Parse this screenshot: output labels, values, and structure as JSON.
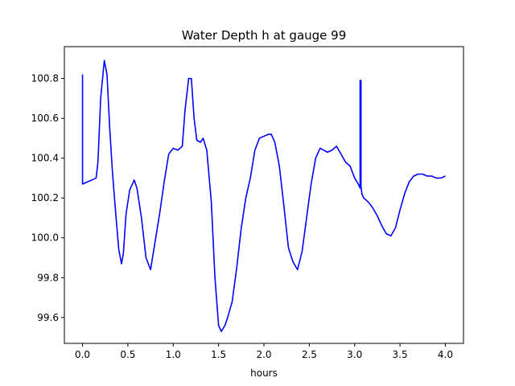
{
  "chart_data": {
    "type": "line",
    "title": "Water Depth h at gauge 99",
    "xlabel": "hours",
    "ylabel": "",
    "xlim": [
      -0.2,
      4.2
    ],
    "ylim": [
      99.47,
      100.96
    ],
    "xticks": [
      0.0,
      0.5,
      1.0,
      1.5,
      2.0,
      2.5,
      3.0,
      3.5,
      4.0
    ],
    "xtick_labels": [
      "0.0",
      "0.5",
      "1.0",
      "1.5",
      "2.0",
      "2.5",
      "3.0",
      "3.5",
      "4.0"
    ],
    "yticks": [
      99.6,
      99.8,
      100.0,
      100.2,
      100.4,
      100.6,
      100.8
    ],
    "ytick_labels": [
      "99.6",
      "99.8",
      "100.0",
      "100.2",
      "100.4",
      "100.6",
      "100.8"
    ],
    "grid": false,
    "legend": "none",
    "series": [
      {
        "color": "#0000ff",
        "x": [
          0.0,
          0.0,
          0.0,
          0.05,
          0.1,
          0.15,
          0.17,
          0.2,
          0.24,
          0.27,
          0.3,
          0.33,
          0.37,
          0.4,
          0.43,
          0.45,
          0.48,
          0.52,
          0.57,
          0.6,
          0.65,
          0.7,
          0.75,
          0.8,
          0.85,
          0.9,
          0.95,
          1.0,
          1.05,
          1.1,
          1.13,
          1.17,
          1.2,
          1.23,
          1.26,
          1.3,
          1.33,
          1.37,
          1.42,
          1.46,
          1.5,
          1.53,
          1.57,
          1.6,
          1.65,
          1.7,
          1.75,
          1.8,
          1.85,
          1.9,
          1.95,
          2.0,
          2.05,
          2.08,
          2.12,
          2.17,
          2.22,
          2.27,
          2.32,
          2.37,
          2.42,
          2.47,
          2.52,
          2.57,
          2.62,
          2.66,
          2.7,
          2.75,
          2.8,
          2.85,
          2.9,
          2.95,
          3.0,
          3.04,
          3.06,
          3.06,
          3.07,
          3.07,
          3.08,
          3.1,
          3.15,
          3.2,
          3.25,
          3.3,
          3.35,
          3.4,
          3.45,
          3.5,
          3.55,
          3.6,
          3.65,
          3.7,
          3.75,
          3.8,
          3.85,
          3.9,
          3.95,
          4.0
        ],
        "values": [
          100.82,
          100.28,
          100.27,
          100.28,
          100.29,
          100.3,
          100.38,
          100.7,
          100.89,
          100.82,
          100.55,
          100.33,
          100.1,
          99.94,
          99.87,
          99.92,
          100.12,
          100.24,
          100.29,
          100.25,
          100.1,
          99.9,
          99.84,
          99.98,
          100.12,
          100.28,
          100.42,
          100.45,
          100.44,
          100.46,
          100.64,
          100.8,
          100.8,
          100.6,
          100.49,
          100.48,
          100.5,
          100.44,
          100.18,
          99.8,
          99.56,
          99.53,
          99.56,
          99.6,
          99.68,
          99.85,
          100.05,
          100.2,
          100.3,
          100.44,
          100.5,
          100.51,
          100.52,
          100.52,
          100.48,
          100.36,
          100.16,
          99.95,
          99.88,
          99.84,
          99.93,
          100.1,
          100.27,
          100.4,
          100.45,
          100.44,
          100.43,
          100.44,
          100.46,
          100.42,
          100.38,
          100.36,
          100.3,
          100.27,
          100.25,
          100.79,
          100.79,
          100.26,
          100.22,
          100.2,
          100.18,
          100.15,
          100.11,
          100.06,
          100.02,
          100.01,
          100.05,
          100.14,
          100.22,
          100.28,
          100.31,
          100.32,
          100.32,
          100.31,
          100.31,
          100.3,
          100.3,
          100.31
        ]
      }
    ]
  }
}
